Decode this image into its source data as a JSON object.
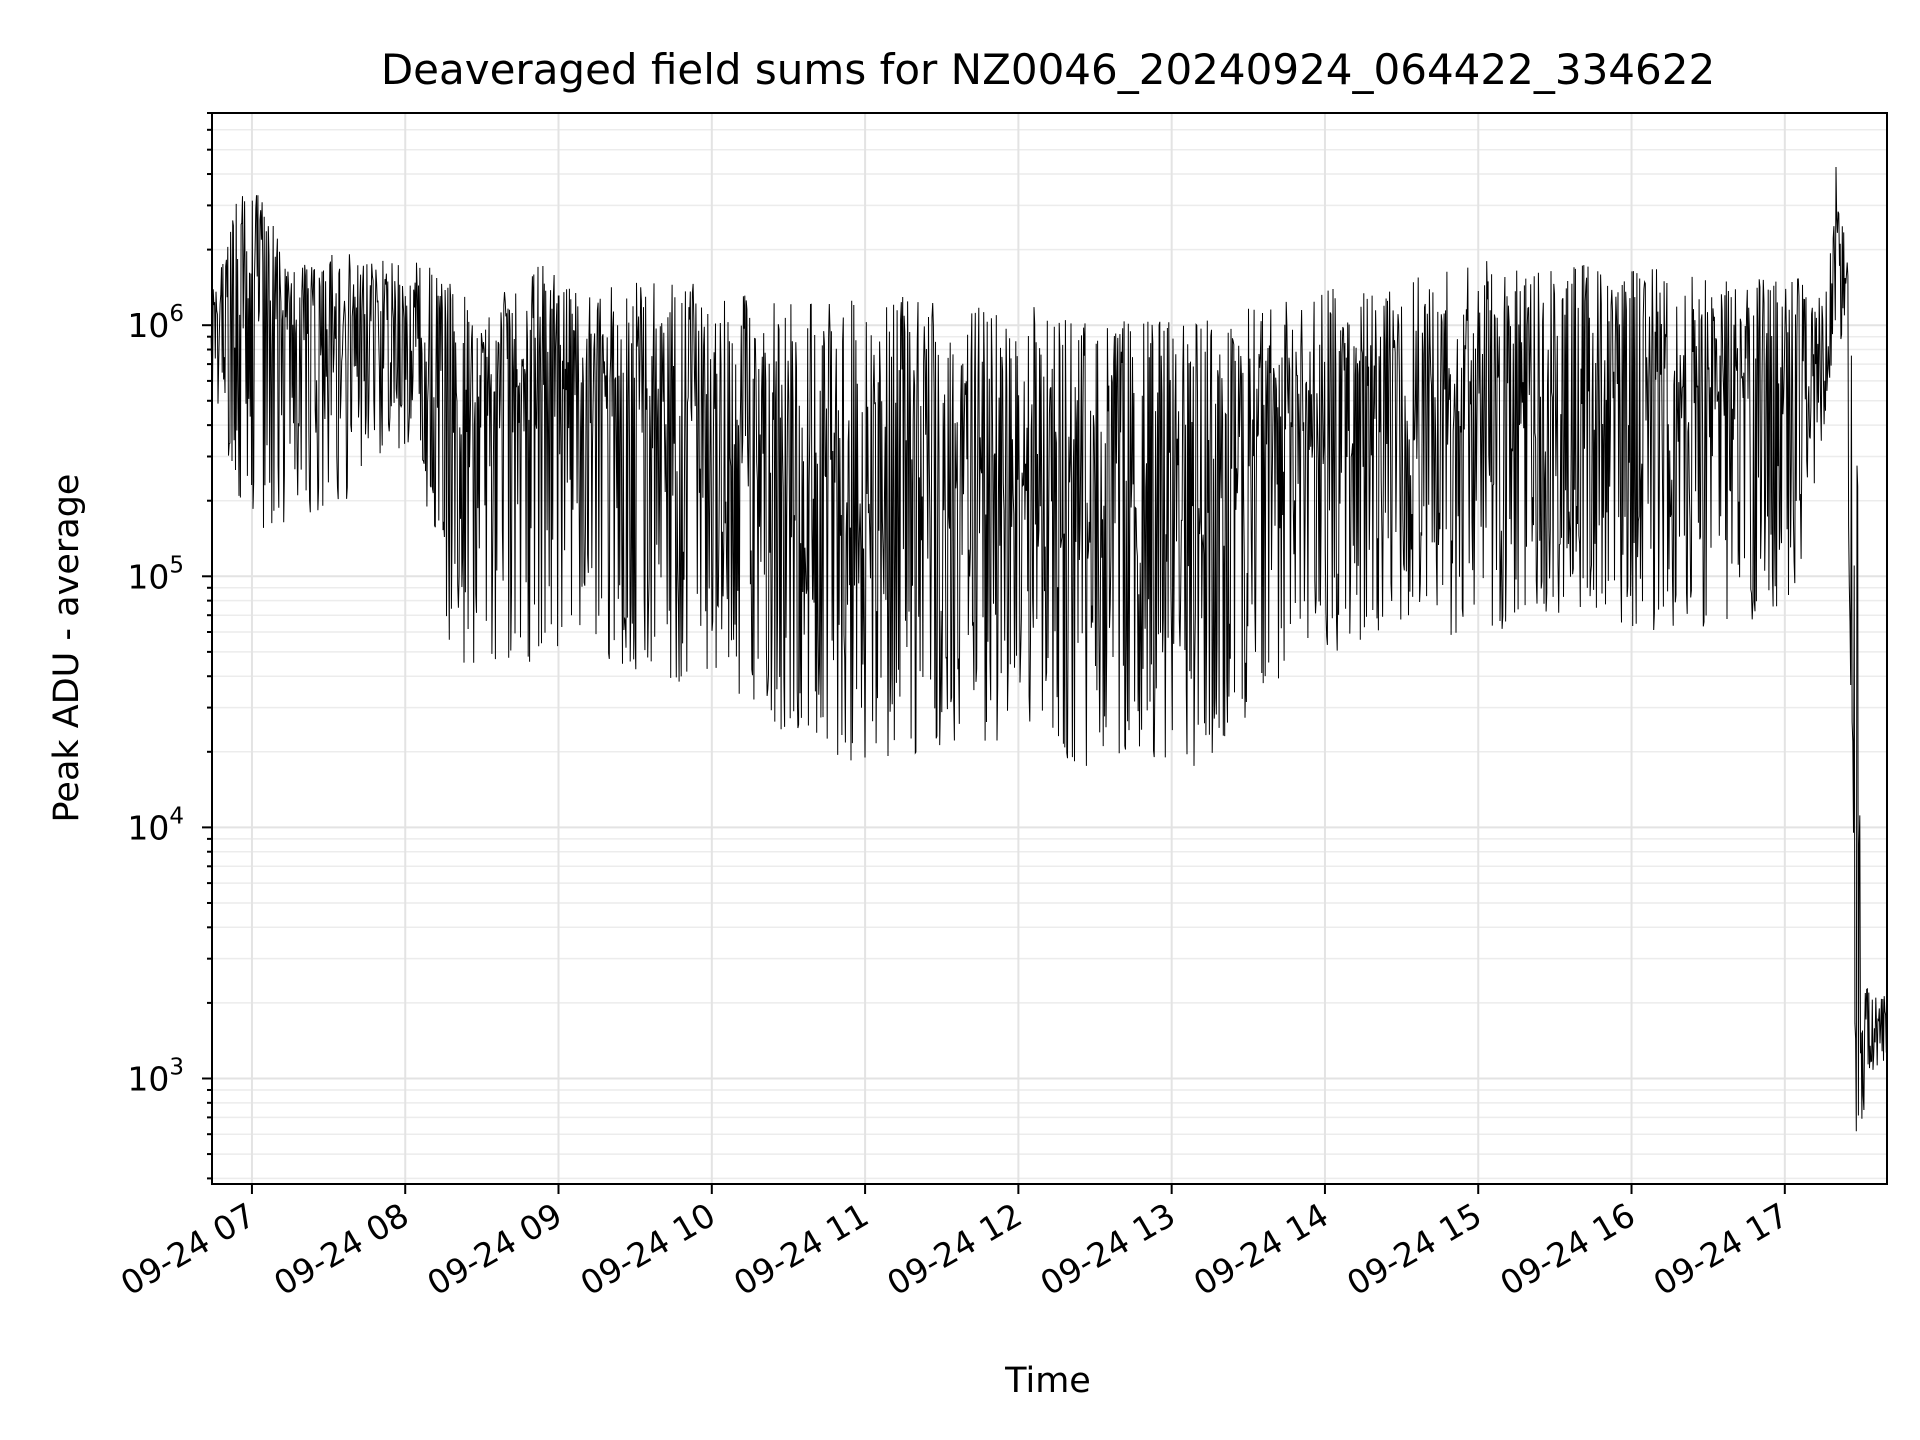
{
  "chart_data": {
    "type": "line",
    "title": "Deaveraged field sums for NZ0046_20240924_064422_334622",
    "xlabel": "Time",
    "ylabel": "Peak ADU - average",
    "yscale": "log",
    "ylim": [
      380,
      7000000
    ],
    "xlim": [
      "2024-09-24 06:44:22",
      "2024-09-24 17:40:00"
    ],
    "grid": true,
    "line_color": "#000000",
    "x_ticks": [
      {
        "label": "09-24 07",
        "time": "2024-09-24 07:00"
      },
      {
        "label": "09-24 08",
        "time": "2024-09-24 08:00"
      },
      {
        "label": "09-24 09",
        "time": "2024-09-24 09:00"
      },
      {
        "label": "09-24 10",
        "time": "2024-09-24 10:00"
      },
      {
        "label": "09-24 11",
        "time": "2024-09-24 11:00"
      },
      {
        "label": "09-24 12",
        "time": "2024-09-24 12:00"
      },
      {
        "label": "09-24 13",
        "time": "2024-09-24 13:00"
      },
      {
        "label": "09-24 14",
        "time": "2024-09-24 14:00"
      },
      {
        "label": "09-24 15",
        "time": "2024-09-24 15:00"
      },
      {
        "label": "09-24 16",
        "time": "2024-09-24 16:00"
      },
      {
        "label": "09-24 17",
        "time": "2024-09-24 17:00"
      }
    ],
    "y_ticks": [
      {
        "base": "10",
        "exp": "3",
        "value": 1000
      },
      {
        "base": "10",
        "exp": "4",
        "value": 10000
      },
      {
        "base": "10",
        "exp": "5",
        "value": 100000
      },
      {
        "base": "10",
        "exp": "6",
        "value": 1000000
      }
    ],
    "series": [
      {
        "x": [
          "2024-09-24 06:44",
          "2024-09-24 06:55",
          "2024-09-24 07:05",
          "2024-09-24 07:15",
          "2024-09-24 07:25",
          "2024-09-24 07:35",
          "2024-09-24 07:45",
          "2024-09-24 07:55",
          "2024-09-24 08:05",
          "2024-09-24 08:15",
          "2024-09-24 08:25",
          "2024-09-24 08:35",
          "2024-09-24 08:45",
          "2024-09-24 08:55",
          "2024-09-24 09:05",
          "2024-09-24 09:15",
          "2024-09-24 09:25",
          "2024-09-24 09:35",
          "2024-09-24 09:45",
          "2024-09-24 09:55",
          "2024-09-24 10:05",
          "2024-09-24 10:15",
          "2024-09-24 10:25",
          "2024-09-24 10:35",
          "2024-09-24 10:45",
          "2024-09-24 10:55",
          "2024-09-24 11:05",
          "2024-09-24 11:15",
          "2024-09-24 11:25",
          "2024-09-24 11:35",
          "2024-09-24 11:45",
          "2024-09-24 11:55",
          "2024-09-24 12:05",
          "2024-09-24 12:15",
          "2024-09-24 12:25",
          "2024-09-24 12:35",
          "2024-09-24 12:45",
          "2024-09-24 12:55",
          "2024-09-24 13:05",
          "2024-09-24 13:15",
          "2024-09-24 13:25",
          "2024-09-24 13:35",
          "2024-09-24 13:45",
          "2024-09-24 13:55",
          "2024-09-24 14:05",
          "2024-09-24 14:15",
          "2024-09-24 14:25",
          "2024-09-24 14:35",
          "2024-09-24 14:45",
          "2024-09-24 14:55",
          "2024-09-24 15:05",
          "2024-09-24 15:15",
          "2024-09-24 15:25",
          "2024-09-24 15:35",
          "2024-09-24 15:45",
          "2024-09-24 15:55",
          "2024-09-24 16:05",
          "2024-09-24 16:15",
          "2024-09-24 16:25",
          "2024-09-24 16:35",
          "2024-09-24 16:45",
          "2024-09-24 16:55",
          "2024-09-24 17:05",
          "2024-09-24 17:12",
          "2024-09-24 17:17",
          "2024-09-24 17:20",
          "2024-09-24 17:24",
          "2024-09-24 17:28",
          "2024-09-24 17:30",
          "2024-09-24 17:32",
          "2024-09-24 17:35",
          "2024-09-24 17:40"
        ],
        "max": [
          1300000,
          3400000,
          3300000,
          1700000,
          1800000,
          2000000,
          1900000,
          1800000,
          1900000,
          1500000,
          1400000,
          1350000,
          1400000,
          1900000,
          1400000,
          1400000,
          1450000,
          1500000,
          1500000,
          1450000,
          1250000,
          1350000,
          1250000,
          1300000,
          1350000,
          1250000,
          1250000,
          1300000,
          1300000,
          1250000,
          1200000,
          1100000,
          1200000,
          1150000,
          1050000,
          1050000,
          1050000,
          1050000,
          1050000,
          1100000,
          1150000,
          1200000,
          1250000,
          1350000,
          1500000,
          1550000,
          1550000,
          1600000,
          1650000,
          1750000,
          1850000,
          1650000,
          1700000,
          1750000,
          1800000,
          1650000,
          1700000,
          1750000,
          1700000,
          1600000,
          1500000,
          1550000,
          1550000,
          1400000,
          1600000,
          4500000,
          2300000,
          1100000,
          2800,
          2500,
          2300,
          2100
        ],
        "min": [
          500000,
          200000,
          130000,
          170000,
          180000,
          190000,
          250000,
          300000,
          350000,
          60000,
          40000,
          35000,
          45000,
          40000,
          60000,
          50000,
          40000,
          45000,
          35000,
          40000,
          40000,
          30000,
          25000,
          22000,
          20000,
          18000,
          19000,
          18000,
          20000,
          22000,
          20000,
          22000,
          24000,
          20000,
          16000,
          18000,
          20000,
          18000,
          17000,
          18000,
          20000,
          25000,
          40000,
          45000,
          50000,
          55000,
          60000,
          70000,
          60000,
          55000,
          60000,
          55000,
          60000,
          65000,
          60000,
          65000,
          60000,
          60000,
          60000,
          65000,
          60000,
          70000,
          90000,
          250000,
          500000,
          1000000,
          700000,
          550,
          600,
          900,
          1100,
          1100
        ],
        "typical": [
          900000,
          1100000,
          1000000,
          900000,
          900000,
          950000,
          950000,
          900000,
          850000,
          600000,
          450000,
          500000,
          520000,
          500000,
          520000,
          480000,
          450000,
          400000,
          420000,
          400000,
          380000,
          300000,
          250000,
          220000,
          200000,
          180000,
          170000,
          175000,
          180000,
          190000,
          200000,
          195000,
          180000,
          170000,
          160000,
          170000,
          165000,
          175000,
          190000,
          210000,
          230000,
          270000,
          320000,
          360000,
          400000,
          420000,
          430000,
          450000,
          460000,
          470000,
          480000,
          470000,
          460000,
          470000,
          490000,
          480000,
          480000,
          470000,
          460000,
          470000,
          480000,
          500000,
          550000,
          600000,
          800000,
          2000000,
          1200000,
          1000,
          1100,
          1500,
          1700,
          1600
        ]
      }
    ]
  }
}
